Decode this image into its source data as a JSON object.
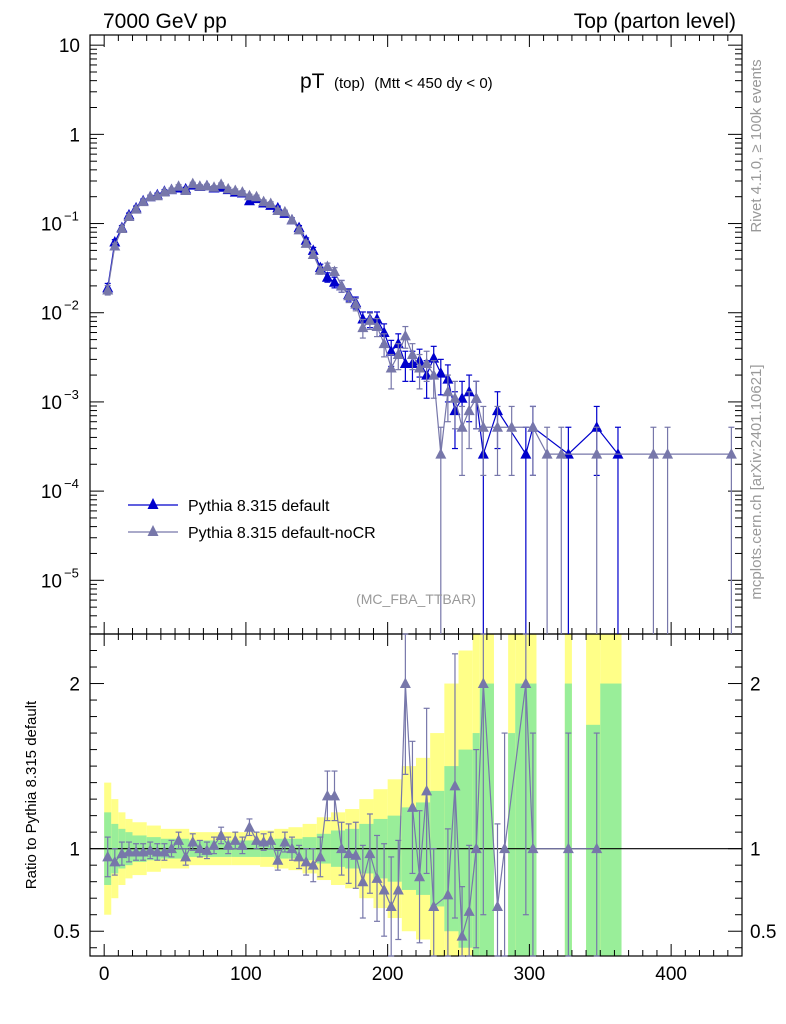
{
  "header": {
    "left": "7000 GeV pp",
    "right": "Top (parton level)"
  },
  "title": {
    "main": "pT",
    "sub1": "(top)",
    "sub2": "(Mtt < 450 dy < 0)"
  },
  "side_labels": {
    "rivet": "Rivet 4.1.0, ≥ 100k events",
    "mcplots": "mcplots.cern.ch [arXiv:2401.10621]"
  },
  "watermark": "(MC_FBA_TTBAR)",
  "ratio_ylabel": "Ratio to Pythia 8.315 default",
  "colors": {
    "default": "#0000cc",
    "nocr": "#7777aa",
    "band_inner": "#99ee99",
    "band_outer": "#ffff88"
  },
  "chart_data": {
    "type": "line",
    "x_axis": {
      "range": [
        -10,
        450
      ],
      "ticks": [
        0,
        100,
        200,
        300,
        400
      ]
    },
    "main_y_axis": {
      "scale": "log",
      "range": [
        2.5e-06,
        13
      ],
      "tick_labels": [
        {
          "value": 10,
          "base": "10",
          "exp": ""
        },
        {
          "value": 1,
          "base": "1",
          "exp": ""
        },
        {
          "value": 0.1,
          "base": "10",
          "exp": "−1"
        },
        {
          "value": 0.01,
          "base": "10",
          "exp": "−2"
        },
        {
          "value": 0.001,
          "base": "10",
          "exp": "−3"
        },
        {
          "value": 0.0001,
          "base": "10",
          "exp": "−4"
        },
        {
          "value": 1e-05,
          "base": "10",
          "exp": "−5"
        }
      ]
    },
    "ratio_y_axis": {
      "range": [
        0.35,
        2.3
      ],
      "ticks": [
        "0.5",
        "1",
        "2"
      ]
    },
    "legend": [
      {
        "label": "Pythia 8.315 default",
        "color_key": "default"
      },
      {
        "label": "Pythia 8.315 default-noCR",
        "color_key": "nocr"
      }
    ],
    "series": [
      {
        "name": "Pythia 8.315 default",
        "points": [
          [
            2.5,
            0.019,
            0.0023
          ],
          [
            7.5,
            0.062,
            0.004
          ],
          [
            12.5,
            0.09,
            0.005
          ],
          [
            17.5,
            0.125,
            0.006
          ],
          [
            22.5,
            0.15,
            0.007
          ],
          [
            27.5,
            0.18,
            0.008
          ],
          [
            32.5,
            0.2,
            0.008
          ],
          [
            37.5,
            0.21,
            0.009
          ],
          [
            42.5,
            0.23,
            0.009
          ],
          [
            47.5,
            0.24,
            0.009
          ],
          [
            52.5,
            0.25,
            0.01
          ],
          [
            57.5,
            0.245,
            0.01
          ],
          [
            62.5,
            0.27,
            0.01
          ],
          [
            67.5,
            0.26,
            0.01
          ],
          [
            72.5,
            0.265,
            0.01
          ],
          [
            77.5,
            0.25,
            0.01
          ],
          [
            82.5,
            0.255,
            0.01
          ],
          [
            87.5,
            0.24,
            0.01
          ],
          [
            92.5,
            0.225,
            0.009
          ],
          [
            97.5,
            0.22,
            0.009
          ],
          [
            102.5,
            0.18,
            0.008
          ],
          [
            107.5,
            0.19,
            0.008
          ],
          [
            112.5,
            0.17,
            0.008
          ],
          [
            117.5,
            0.16,
            0.007
          ],
          [
            122.5,
            0.15,
            0.007
          ],
          [
            127.5,
            0.13,
            0.006
          ],
          [
            132.5,
            0.11,
            0.006
          ],
          [
            137.5,
            0.09,
            0.005
          ],
          [
            142.5,
            0.065,
            0.004
          ],
          [
            147.5,
            0.05,
            0.004
          ],
          [
            152.5,
            0.032,
            0.003
          ],
          [
            157.5,
            0.025,
            0.003
          ],
          [
            162.5,
            0.022,
            0.003
          ],
          [
            167.5,
            0.02,
            0.003
          ],
          [
            172.5,
            0.016,
            0.0025
          ],
          [
            177.5,
            0.013,
            0.002
          ],
          [
            182.5,
            0.0085,
            0.0017
          ],
          [
            187.5,
            0.0085,
            0.0017
          ],
          [
            192.5,
            0.0085,
            0.0017
          ],
          [
            197.5,
            0.006,
            0.0015
          ],
          [
            202.5,
            0.0037,
            0.0012
          ],
          [
            207.5,
            0.0045,
            0.0013
          ],
          [
            212.5,
            0.0027,
            0.001
          ],
          [
            217.5,
            0.0027,
            0.001
          ],
          [
            222.5,
            0.0029,
            0.001
          ],
          [
            227.5,
            0.002,
            0.0009
          ],
          [
            232.5,
            0.0031,
            0.0011
          ],
          [
            237.5,
            0.0021,
            0.0009
          ],
          [
            242.5,
            0.0018,
            0.0008
          ],
          [
            247.5,
            0.0008,
            0.0005
          ],
          [
            252.5,
            0.0011,
            0.0006
          ],
          [
            257.5,
            0.0013,
            0.0007
          ],
          [
            262.5,
            0.0011,
            0.0006
          ],
          [
            267.5,
            0.00026,
            0.00026
          ],
          [
            277.5,
            0.0008,
            0.0005
          ],
          [
            297.5,
            0.00026,
            0.00026
          ],
          [
            302.5,
            0.00052,
            0.00037
          ],
          [
            327.5,
            0.00026,
            0.00026
          ],
          [
            347.5,
            0.00052,
            0.00037
          ],
          [
            362.5,
            0.00026,
            0.00026
          ]
        ]
      },
      {
        "name": "Pythia 8.315 default-noCR",
        "points": [
          [
            2.5,
            0.018,
            0.0022
          ],
          [
            7.5,
            0.056,
            0.004
          ],
          [
            12.5,
            0.088,
            0.005
          ],
          [
            17.5,
            0.12,
            0.006
          ],
          [
            22.5,
            0.145,
            0.007
          ],
          [
            27.5,
            0.176,
            0.008
          ],
          [
            32.5,
            0.2,
            0.008
          ],
          [
            37.5,
            0.205,
            0.009
          ],
          [
            42.5,
            0.226,
            0.009
          ],
          [
            47.5,
            0.24,
            0.009
          ],
          [
            52.5,
            0.262,
            0.01
          ],
          [
            57.5,
            0.235,
            0.01
          ],
          [
            62.5,
            0.28,
            0.01
          ],
          [
            67.5,
            0.262,
            0.01
          ],
          [
            72.5,
            0.265,
            0.01
          ],
          [
            77.5,
            0.255,
            0.01
          ],
          [
            82.5,
            0.275,
            0.01
          ],
          [
            87.5,
            0.245,
            0.01
          ],
          [
            92.5,
            0.235,
            0.009
          ],
          [
            97.5,
            0.225,
            0.009
          ],
          [
            102.5,
            0.205,
            0.008
          ],
          [
            107.5,
            0.2,
            0.008
          ],
          [
            112.5,
            0.176,
            0.008
          ],
          [
            117.5,
            0.168,
            0.007
          ],
          [
            122.5,
            0.14,
            0.007
          ],
          [
            127.5,
            0.135,
            0.006
          ],
          [
            132.5,
            0.11,
            0.006
          ],
          [
            137.5,
            0.085,
            0.005
          ],
          [
            142.5,
            0.06,
            0.004
          ],
          [
            147.5,
            0.045,
            0.004
          ],
          [
            152.5,
            0.03,
            0.003
          ],
          [
            157.5,
            0.033,
            0.003
          ],
          [
            162.5,
            0.029,
            0.003
          ],
          [
            167.5,
            0.02,
            0.003
          ],
          [
            172.5,
            0.0155,
            0.0025
          ],
          [
            177.5,
            0.0125,
            0.002
          ],
          [
            182.5,
            0.0068,
            0.0016
          ],
          [
            187.5,
            0.0082,
            0.0017
          ],
          [
            192.5,
            0.007,
            0.0016
          ],
          [
            197.5,
            0.0045,
            0.0013
          ],
          [
            202.5,
            0.0024,
            0.001
          ],
          [
            207.5,
            0.0034,
            0.0011
          ],
          [
            212.5,
            0.0055,
            0.0015
          ],
          [
            217.5,
            0.0034,
            0.0011
          ],
          [
            222.5,
            0.0024,
            0.001
          ],
          [
            227.5,
            0.0027,
            0.001
          ],
          [
            232.5,
            0.002,
            0.0009
          ],
          [
            237.5,
            0.00026,
            0.00026
          ],
          [
            242.5,
            0.0013,
            0.0007
          ],
          [
            247.5,
            0.0011,
            0.0006
          ],
          [
            252.5,
            0.00052,
            0.00037
          ],
          [
            257.5,
            0.0008,
            0.0005
          ],
          [
            262.5,
            0.0011,
            0.0006
          ],
          [
            267.5,
            0.00052,
            0.00037
          ],
          [
            277.5,
            0.00052,
            0.00037
          ],
          [
            287.5,
            0.00052,
            0.00037
          ],
          [
            302.5,
            0.00052,
            0.00037
          ],
          [
            312.5,
            0.00026,
            0.00026
          ],
          [
            322.5,
            0.00026,
            0.00026
          ],
          [
            347.5,
            0.00026,
            0.00026
          ],
          [
            387.5,
            0.00026,
            0.00026
          ],
          [
            397.5,
            0.00026,
            0.00026
          ],
          [
            442.5,
            0.00026,
            0.00026
          ]
        ]
      }
    ],
    "ratio_series": {
      "name": "Pythia 8.315 default-noCR / Pythia 8.315 default",
      "points": [
        [
          2.5,
          0.95,
          0.12
        ],
        [
          7.5,
          0.92,
          0.08
        ],
        [
          12.5,
          0.97,
          0.07
        ],
        [
          17.5,
          0.98,
          0.06
        ],
        [
          22.5,
          0.98,
          0.05
        ],
        [
          27.5,
          0.98,
          0.05
        ],
        [
          32.5,
          0.99,
          0.05
        ],
        [
          37.5,
          0.98,
          0.05
        ],
        [
          42.5,
          0.98,
          0.05
        ],
        [
          47.5,
          1.0,
          0.05
        ],
        [
          52.5,
          1.05,
          0.05
        ],
        [
          57.5,
          0.95,
          0.05
        ],
        [
          62.5,
          1.04,
          0.05
        ],
        [
          67.5,
          1.0,
          0.05
        ],
        [
          72.5,
          0.99,
          0.05
        ],
        [
          77.5,
          1.02,
          0.05
        ],
        [
          82.5,
          1.08,
          0.05
        ],
        [
          87.5,
          1.02,
          0.05
        ],
        [
          92.5,
          1.05,
          0.05
        ],
        [
          97.5,
          1.02,
          0.05
        ],
        [
          102.5,
          1.13,
          0.05
        ],
        [
          107.5,
          1.05,
          0.05
        ],
        [
          112.5,
          1.04,
          0.05
        ],
        [
          117.5,
          1.05,
          0.05
        ],
        [
          122.5,
          0.93,
          0.06
        ],
        [
          127.5,
          1.04,
          0.06
        ],
        [
          132.5,
          1.0,
          0.07
        ],
        [
          137.5,
          0.95,
          0.07
        ],
        [
          142.5,
          0.92,
          0.08
        ],
        [
          147.5,
          0.9,
          0.1
        ],
        [
          152.5,
          0.95,
          0.12
        ],
        [
          157.5,
          1.32,
          0.15
        ],
        [
          162.5,
          1.32,
          0.15
        ],
        [
          167.5,
          1.0,
          0.16
        ],
        [
          172.5,
          0.97,
          0.18
        ],
        [
          177.5,
          0.96,
          0.2
        ],
        [
          182.5,
          0.8,
          0.22
        ],
        [
          187.5,
          0.97,
          0.24
        ],
        [
          192.5,
          0.82,
          0.26
        ],
        [
          197.5,
          0.75,
          0.28
        ],
        [
          202.5,
          0.65,
          0.3
        ],
        [
          207.5,
          0.75,
          0.3
        ],
        [
          212.5,
          2.0,
          0.55
        ],
        [
          217.5,
          1.25,
          0.4
        ],
        [
          222.5,
          0.83,
          0.4
        ],
        [
          227.5,
          1.35,
          0.5
        ],
        [
          232.5,
          0.65,
          0.35
        ],
        [
          242.5,
          0.72,
          0.4
        ],
        [
          247.5,
          1.38,
          0.8
        ],
        [
          252.5,
          0.47,
          0.3
        ],
        [
          257.5,
          0.62,
          0.4
        ],
        [
          262.5,
          1.0,
          0.6
        ],
        [
          267.5,
          2.0,
          1.4
        ],
        [
          277.5,
          0.65,
          0.5
        ],
        [
          282.5,
          1.0,
          0.7
        ],
        [
          297.5,
          2.0,
          1.4
        ],
        [
          302.5,
          1.0,
          0.7
        ],
        [
          327.5,
          1.0,
          0.7
        ],
        [
          347.5,
          1.0,
          0.7
        ]
      ]
    },
    "ratio_bands": [
      [
        0,
        5,
        0.22,
        0.4
      ],
      [
        5,
        10,
        0.15,
        0.3
      ],
      [
        10,
        15,
        0.12,
        0.22
      ],
      [
        15,
        20,
        0.1,
        0.18
      ],
      [
        20,
        30,
        0.08,
        0.16
      ],
      [
        30,
        40,
        0.07,
        0.14
      ],
      [
        40,
        60,
        0.06,
        0.12
      ],
      [
        60,
        90,
        0.05,
        0.1
      ],
      [
        90,
        110,
        0.05,
        0.1
      ],
      [
        110,
        120,
        0.05,
        0.11
      ],
      [
        120,
        130,
        0.06,
        0.12
      ],
      [
        130,
        140,
        0.06,
        0.13
      ],
      [
        140,
        150,
        0.07,
        0.15
      ],
      [
        150,
        160,
        0.09,
        0.19
      ],
      [
        160,
        170,
        0.11,
        0.22
      ],
      [
        170,
        180,
        0.12,
        0.24
      ],
      [
        180,
        190,
        0.15,
        0.3
      ],
      [
        190,
        200,
        0.18,
        0.36
      ],
      [
        200,
        210,
        0.2,
        0.42
      ],
      [
        210,
        220,
        0.25,
        0.5
      ],
      [
        220,
        230,
        0.28,
        0.55
      ],
      [
        230,
        240,
        0.35,
        0.7
      ],
      [
        240,
        250,
        0.5,
        1.0
      ],
      [
        250,
        260,
        0.6,
        1.2
      ],
      [
        260,
        265,
        0.7,
        1.4
      ],
      [
        265,
        275,
        1.0,
        2.0
      ],
      [
        285,
        290,
        0.7,
        1.4
      ],
      [
        290,
        305,
        1.0,
        2.0
      ],
      [
        325,
        330,
        1.0,
        2.0
      ],
      [
        340,
        350,
        0.75,
        1.5
      ],
      [
        350,
        365,
        1.0,
        2.0
      ]
    ]
  }
}
